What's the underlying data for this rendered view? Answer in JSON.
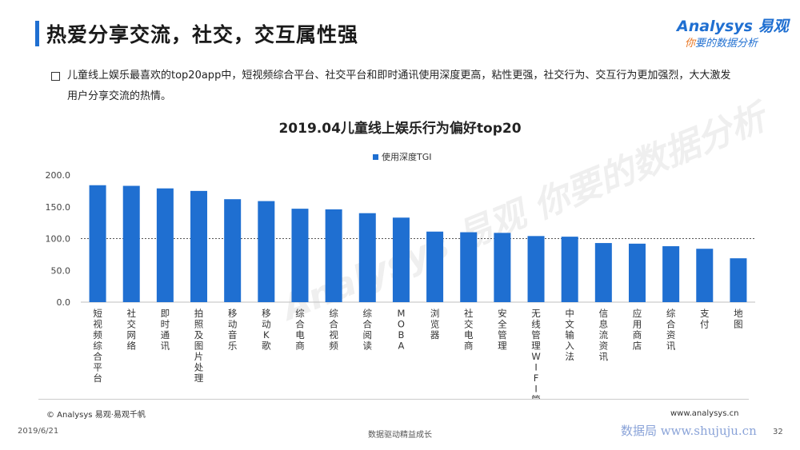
{
  "header": {
    "title": "热爱分享交流，社交，交互属性强",
    "accent_color": "#1f6fd1"
  },
  "logo": {
    "main": "Analysys 易观",
    "sub_first": "你",
    "sub_rest": "要的数据分析"
  },
  "summary": {
    "text": "儿童线上娱乐最喜欢的top20app中，短视频综合平台、社交平台和即时通讯使用深度更高，粘性更强，社交行为、交互行为更加强烈，大大激发用户分享交流的热情。"
  },
  "watermark": "Analysys 易观 你要的数据分析",
  "chart_data": {
    "type": "bar",
    "title": "2019.04儿童线上娱乐行为偏好top20",
    "legend": [
      "使用深度TGI"
    ],
    "legend_position": "top-center",
    "bar_color": "#1f6fd1",
    "categories": [
      "短视频综合平台",
      "社交网络",
      "即时通讯",
      "拍照及图片处理",
      "移动音乐",
      "移动K歌",
      "综合电商",
      "综合视频",
      "综合阅读",
      "MOBA",
      "浏览器",
      "社交电商",
      "安全管理",
      "无线管理WIFI管理",
      "中文输入法",
      "信息流资讯",
      "应用商店",
      "综合资讯",
      "支付",
      "地图"
    ],
    "series": [
      {
        "name": "使用深度TGI",
        "values": [
          184,
          183,
          179,
          175,
          162,
          159,
          147,
          146,
          140,
          133,
          111,
          110,
          109,
          104,
          103,
          93,
          92,
          88,
          84,
          69
        ]
      }
    ],
    "ylim": [
      0,
      200
    ],
    "yticks": [
      "200.0",
      "150.0",
      "100.0",
      "50.0",
      "0.0"
    ],
    "reference_line": 100,
    "grid": false
  },
  "footer": {
    "copyright": "© Analysys 易观·易观千帆",
    "website": "www.analysys.cn",
    "date": "2019/6/21",
    "center": "数据驱动精益成长",
    "site_watermark": "数据局 www.shujuju.cn",
    "page": "32"
  }
}
